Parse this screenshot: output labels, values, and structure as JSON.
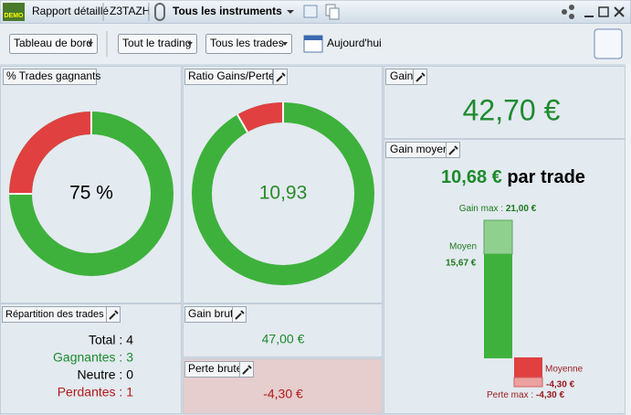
{
  "top_bar": {
    "icon_label": "DEMO",
    "report": "Rapport détaillé",
    "account": "Z3TAZH",
    "instruments": "Tous les instruments"
  },
  "toolbar": {
    "view": "Tableau de bord",
    "trading": "Tout le trading",
    "trades": "Tous les trades",
    "date": "Aujourd'hui"
  },
  "panels": {
    "win_rate": {
      "title": "% Trades gagnants",
      "value": "75 %"
    },
    "ratio": {
      "title": "Ratio Gains/Pertes",
      "value": "10,93"
    },
    "gain": {
      "title": "Gain",
      "value": "42,70 €"
    },
    "avg_gain": {
      "title": "Gain moyen",
      "value": "10,68 €",
      "suffix": "par trade",
      "max_label": "Gain max :",
      "max_value": "21,00 €",
      "avg_label": "Moyen",
      "avg_value": "15,67 €",
      "loss_avg_label": "Moyenne",
      "loss_avg_value": "-4,30 €",
      "loss_max_label": "Perte max :",
      "loss_max_value": "-4,30 €"
    },
    "distribution": {
      "title": "Répartition des trades",
      "rows": [
        "Total : 4",
        "Gagnantes : 3",
        "Neutre : 0",
        "Perdantes : 1"
      ]
    },
    "gross_gain": {
      "title": "Gain brut",
      "value": "47,00 €"
    },
    "gross_loss": {
      "title": "Perte brute",
      "value": "-4,30 €"
    }
  }
}
